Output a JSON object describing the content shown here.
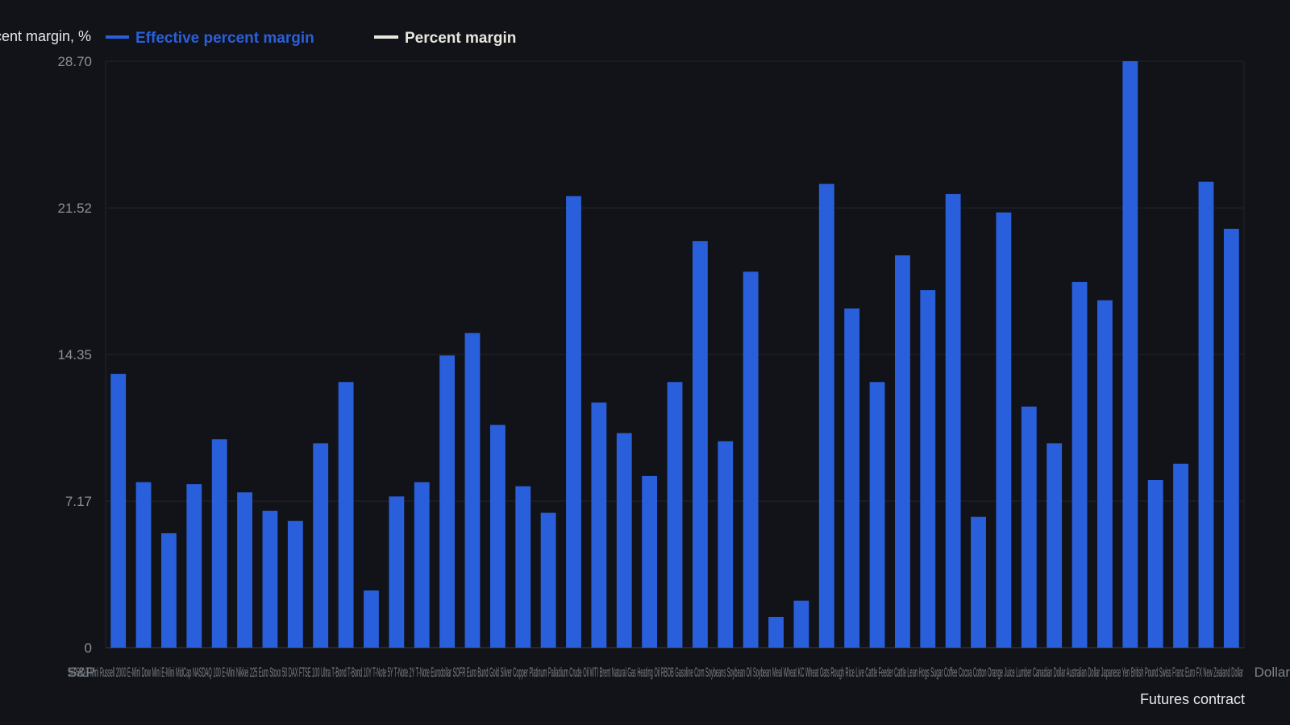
{
  "chart_data": {
    "type": "bar",
    "ylabel": "Percent margin, %",
    "xlabel": "Futures contract",
    "ylim": [
      0,
      28.7
    ],
    "yticks": [
      "0",
      "7.17",
      "14.35",
      "21.52",
      "28.70"
    ],
    "grid": true,
    "legend_position": "top-left",
    "series": [
      {
        "name": "Effective percent margin",
        "color": "#2a5fdc",
        "values": [
          13.4,
          8.1,
          5.6,
          8.0,
          10.2,
          7.6,
          6.7,
          6.2,
          10.0,
          13.0,
          2.8,
          7.4,
          8.1,
          14.3,
          15.4,
          10.9,
          7.9,
          6.6,
          22.1,
          12.0,
          10.5,
          8.4,
          13.0,
          19.9,
          10.1,
          18.4,
          1.5,
          2.3,
          22.7,
          16.6,
          13.0,
          19.2,
          17.5,
          22.2,
          6.4,
          21.3,
          11.8,
          10.0,
          17.9,
          17.0,
          28.7,
          8.2,
          9.0,
          22.8,
          20.5
        ]
      },
      {
        "name": "Percent margin",
        "color": "#e8e6df",
        "values": []
      }
    ],
    "first_category": "S&P",
    "last_category": "Dollar",
    "categories_overlap_text": "S&P500 E-Mini Russell 2000 E-Mini Dow Mini E-Mini MidCap NASDAQ 100 E-Mini Nikkei 225 Euro Stoxx 50 DAX FTSE 100 Ultra T-Bond T-Bond 10Y T-Note 5Y T-Note 2Y T-Note Eurodollar SOFR Euro Bund Gold Silver Copper Platinum Palladium Crude Oil WTI Brent Natural Gas Heating Oil RBOB Gasoline Corn Soybeans Soybean Oil Soybean Meal Wheat KC Wheat Oats Rough Rice Live Cattle Feeder Cattle Lean Hogs Sugar Coffee Cocoa Cotton Orange Juice Lumber Canadian Dollar Australian Dollar Japanese Yen British Pound Swiss Franc Euro FX New Zealand Dollar"
  }
}
